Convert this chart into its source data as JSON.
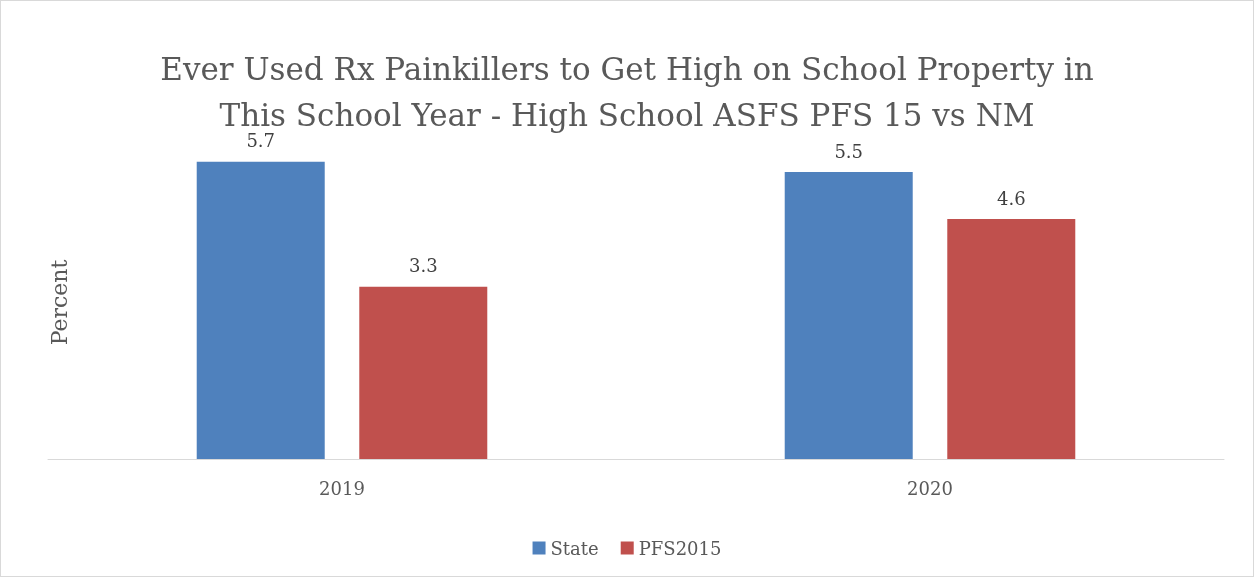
{
  "chart_data": {
    "type": "bar",
    "title": "Ever Used Rx Painkillers to Get High on School Property in\nThis School Year - High School ASFS PFS 15 vs NM",
    "ylabel": "Percent",
    "categories": [
      "2019",
      "2020"
    ],
    "series": [
      {
        "name": "State",
        "color": "#4f81bd",
        "values": [
          5.7,
          5.5
        ]
      },
      {
        "name": "PFS2015",
        "color": "#c0504d",
        "values": [
          3.3,
          4.6
        ]
      }
    ],
    "data_labels": true,
    "grid": false,
    "legend": "bottom"
  }
}
